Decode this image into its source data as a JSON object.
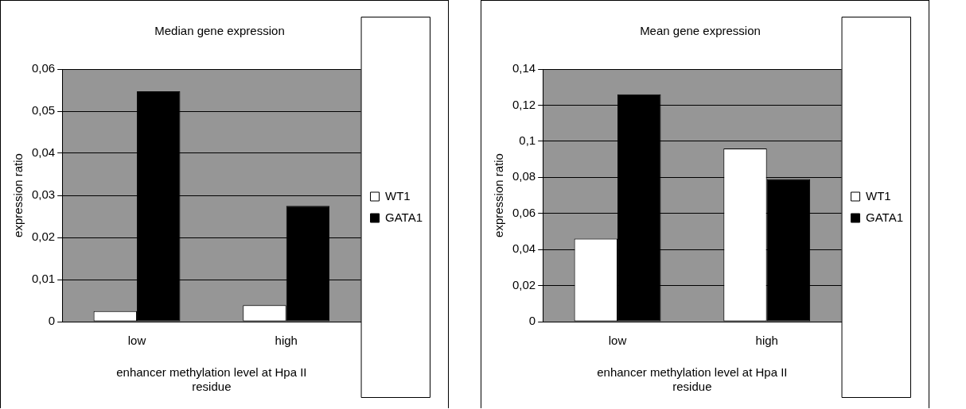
{
  "chart_data": [
    {
      "type": "bar",
      "title": "Median gene expression",
      "xlabel": "enhancer methylation level at Hpa II residue",
      "ylabel": "expression ratio",
      "categories": [
        "low",
        "high"
      ],
      "series": [
        {
          "name": "WT1",
          "color": "#ffffff",
          "values": [
            0.0025,
            0.0039
          ]
        },
        {
          "name": "GATA1",
          "color": "#000000",
          "values": [
            0.0547,
            0.0275
          ]
        }
      ],
      "ylim": [
        0,
        0.06
      ],
      "yticks": [
        {
          "value": 0,
          "label": "0"
        },
        {
          "value": 0.01,
          "label": "0,01"
        },
        {
          "value": 0.02,
          "label": "0,02"
        },
        {
          "value": 0.03,
          "label": "0,03"
        },
        {
          "value": 0.04,
          "label": "0,04"
        },
        {
          "value": 0.05,
          "label": "0,05"
        },
        {
          "value": 0.06,
          "label": "0,06"
        }
      ],
      "grid": "y",
      "legend": "right"
    },
    {
      "type": "bar",
      "title": "Mean gene expression",
      "xlabel": "enhancer methylation level at Hpa II residue",
      "ylabel": "expression ratio",
      "categories": [
        "low",
        "high"
      ],
      "series": [
        {
          "name": "WT1",
          "color": "#ffffff",
          "values": [
            0.046,
            0.096
          ]
        },
        {
          "name": "GATA1",
          "color": "#000000",
          "values": [
            0.126,
            0.079
          ]
        }
      ],
      "ylim": [
        0,
        0.14
      ],
      "yticks": [
        {
          "value": 0,
          "label": "0"
        },
        {
          "value": 0.02,
          "label": "0,02"
        },
        {
          "value": 0.04,
          "label": "0,04"
        },
        {
          "value": 0.06,
          "label": "0,06"
        },
        {
          "value": 0.08,
          "label": "0,08"
        },
        {
          "value": 0.1,
          "label": "0,1"
        },
        {
          "value": 0.12,
          "label": "0,12"
        },
        {
          "value": 0.14,
          "label": "0,14"
        }
      ],
      "grid": "y",
      "legend": "right"
    }
  ]
}
